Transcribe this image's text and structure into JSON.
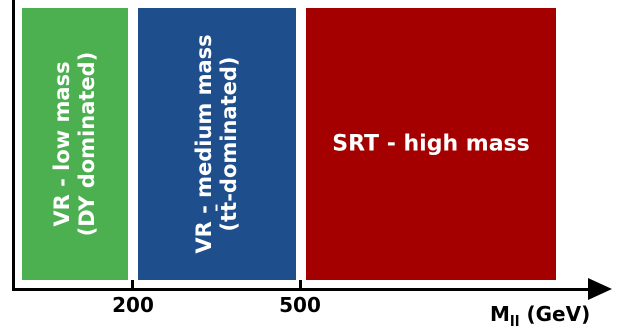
{
  "regions": [
    {
      "line1": "VR - low mass",
      "line2": "(DY dominated)",
      "color": "#4caf50"
    },
    {
      "line1": "VR - medium mass",
      "line2": "(tt̄-dominated)",
      "color": "#1e4f8c"
    },
    {
      "label": "SRT - high mass",
      "color": "#a50000"
    }
  ],
  "axis": {
    "ticks": [
      "200",
      "500"
    ],
    "label": "M_ll (GeV)",
    "label_main": "M",
    "label_sub": "ll",
    "label_unit": " (GeV)"
  }
}
